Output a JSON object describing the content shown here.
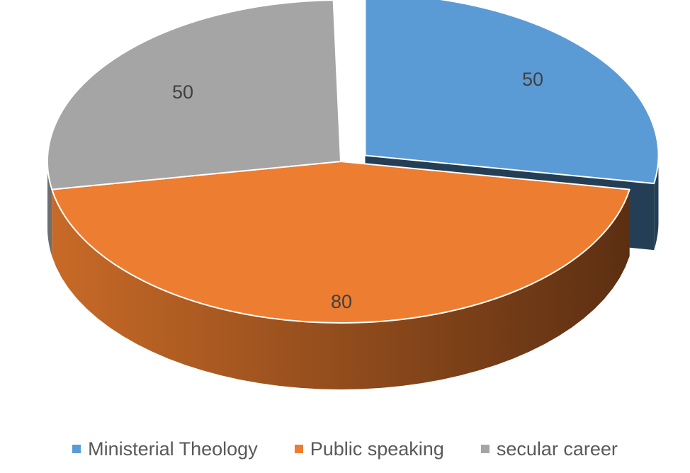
{
  "chart_data": {
    "type": "pie",
    "style": "3d-exploded",
    "categories": [
      "Ministerial Theology",
      "Public speaking",
      "secular career"
    ],
    "values": [
      50,
      80,
      50
    ],
    "colors": [
      "#5B9BD5",
      "#ED7D31",
      "#A5A5A5"
    ],
    "side_colors": [
      "#243F55",
      "#8A4A1D",
      "#6E6E6E"
    ],
    "data_labels": [
      "50",
      "80",
      "50"
    ],
    "exploded": [
      "Ministerial Theology"
    ],
    "legend_position": "bottom"
  }
}
